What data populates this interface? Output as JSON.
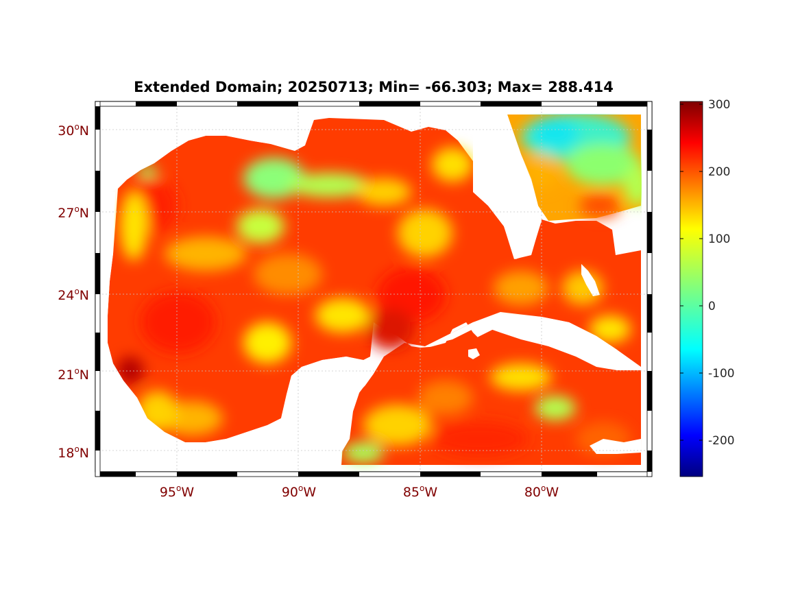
{
  "title": "Extended Domain; 20250713; Min= -66.303; Max= 288.414",
  "map": {
    "region": "Gulf of Mexico and Caribbean",
    "lon_range": [
      -98.5,
      -75.5
    ],
    "lat_range": [
      17.0,
      31.0
    ],
    "grid": true,
    "land_color": "#ffffff",
    "lat_ticks": [
      {
        "value": 30,
        "num": "30",
        "deg": "o",
        "hemi": "N"
      },
      {
        "value": 27,
        "num": "27",
        "deg": "o",
        "hemi": "N"
      },
      {
        "value": 24,
        "num": "24",
        "deg": "o",
        "hemi": "N"
      },
      {
        "value": 21,
        "num": "21",
        "deg": "o",
        "hemi": "N"
      },
      {
        "value": 18,
        "num": "18",
        "deg": "o",
        "hemi": "N"
      }
    ],
    "lon_ticks": [
      {
        "value": -95,
        "num": "95",
        "deg": "o",
        "hemi": "W"
      },
      {
        "value": -90,
        "num": "90",
        "deg": "o",
        "hemi": "W"
      },
      {
        "value": -85,
        "num": "85",
        "deg": "o",
        "hemi": "W"
      },
      {
        "value": -80,
        "num": "80",
        "deg": "o",
        "hemi": "W"
      }
    ]
  },
  "colorbar": {
    "colormap": "jet",
    "range": [
      -255,
      305
    ],
    "ticks": [
      {
        "value": 300,
        "label": "300"
      },
      {
        "value": 200,
        "label": "200"
      },
      {
        "value": 100,
        "label": "100"
      },
      {
        "value": 0,
        "label": "0"
      },
      {
        "value": -100,
        "label": "-100"
      },
      {
        "value": -200,
        "label": "-200"
      }
    ]
  },
  "field": {
    "min": -66.303,
    "max": 288.414,
    "dominant_color": "#ff3c00"
  }
}
